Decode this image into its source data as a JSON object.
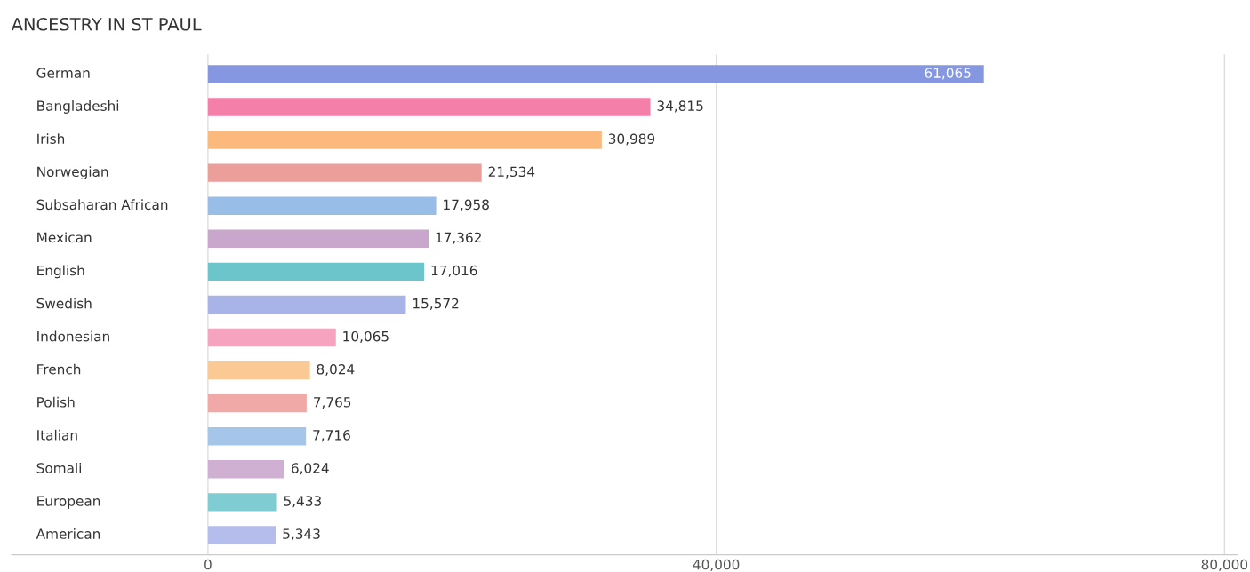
{
  "chart_data": {
    "type": "bar",
    "orientation": "horizontal",
    "title": "ANCESTRY IN ST PAUL",
    "categories": [
      "German",
      "Bangladeshi",
      "Irish",
      "Norwegian",
      "Subsaharan African",
      "Mexican",
      "English",
      "Swedish",
      "Indonesian",
      "French",
      "Polish",
      "Italian",
      "Somali",
      "European",
      "American"
    ],
    "values": [
      61065,
      34815,
      30989,
      21534,
      17958,
      17362,
      17016,
      15572,
      10065,
      8024,
      7765,
      7716,
      6024,
      5433,
      5343
    ],
    "colors": [
      "#8497e0",
      "#f47fa8",
      "#fbb97e",
      "#eb9e9a",
      "#98bde6",
      "#c9a6cb",
      "#6cc5cb",
      "#a8b4e8",
      "#f6a3bf",
      "#fbc994",
      "#f0a9a6",
      "#a5c5e9",
      "#cfb0d3",
      "#7fcdd2",
      "#b4bdec"
    ],
    "value_labels": [
      "61,065",
      "34,815",
      "30,989",
      "21,534",
      "17,958",
      "17,362",
      "17,016",
      "15,572",
      "10,065",
      "8,024",
      "7,765",
      "7,716",
      "6,024",
      "5,433",
      "5,343"
    ],
    "xlim": [
      -15450,
      81050
    ],
    "xticks": [
      {
        "value": 0,
        "label": "0"
      },
      {
        "value": 40000,
        "label": "40,000"
      },
      {
        "value": 80000,
        "label": "80,000"
      }
    ],
    "grid": "x"
  }
}
